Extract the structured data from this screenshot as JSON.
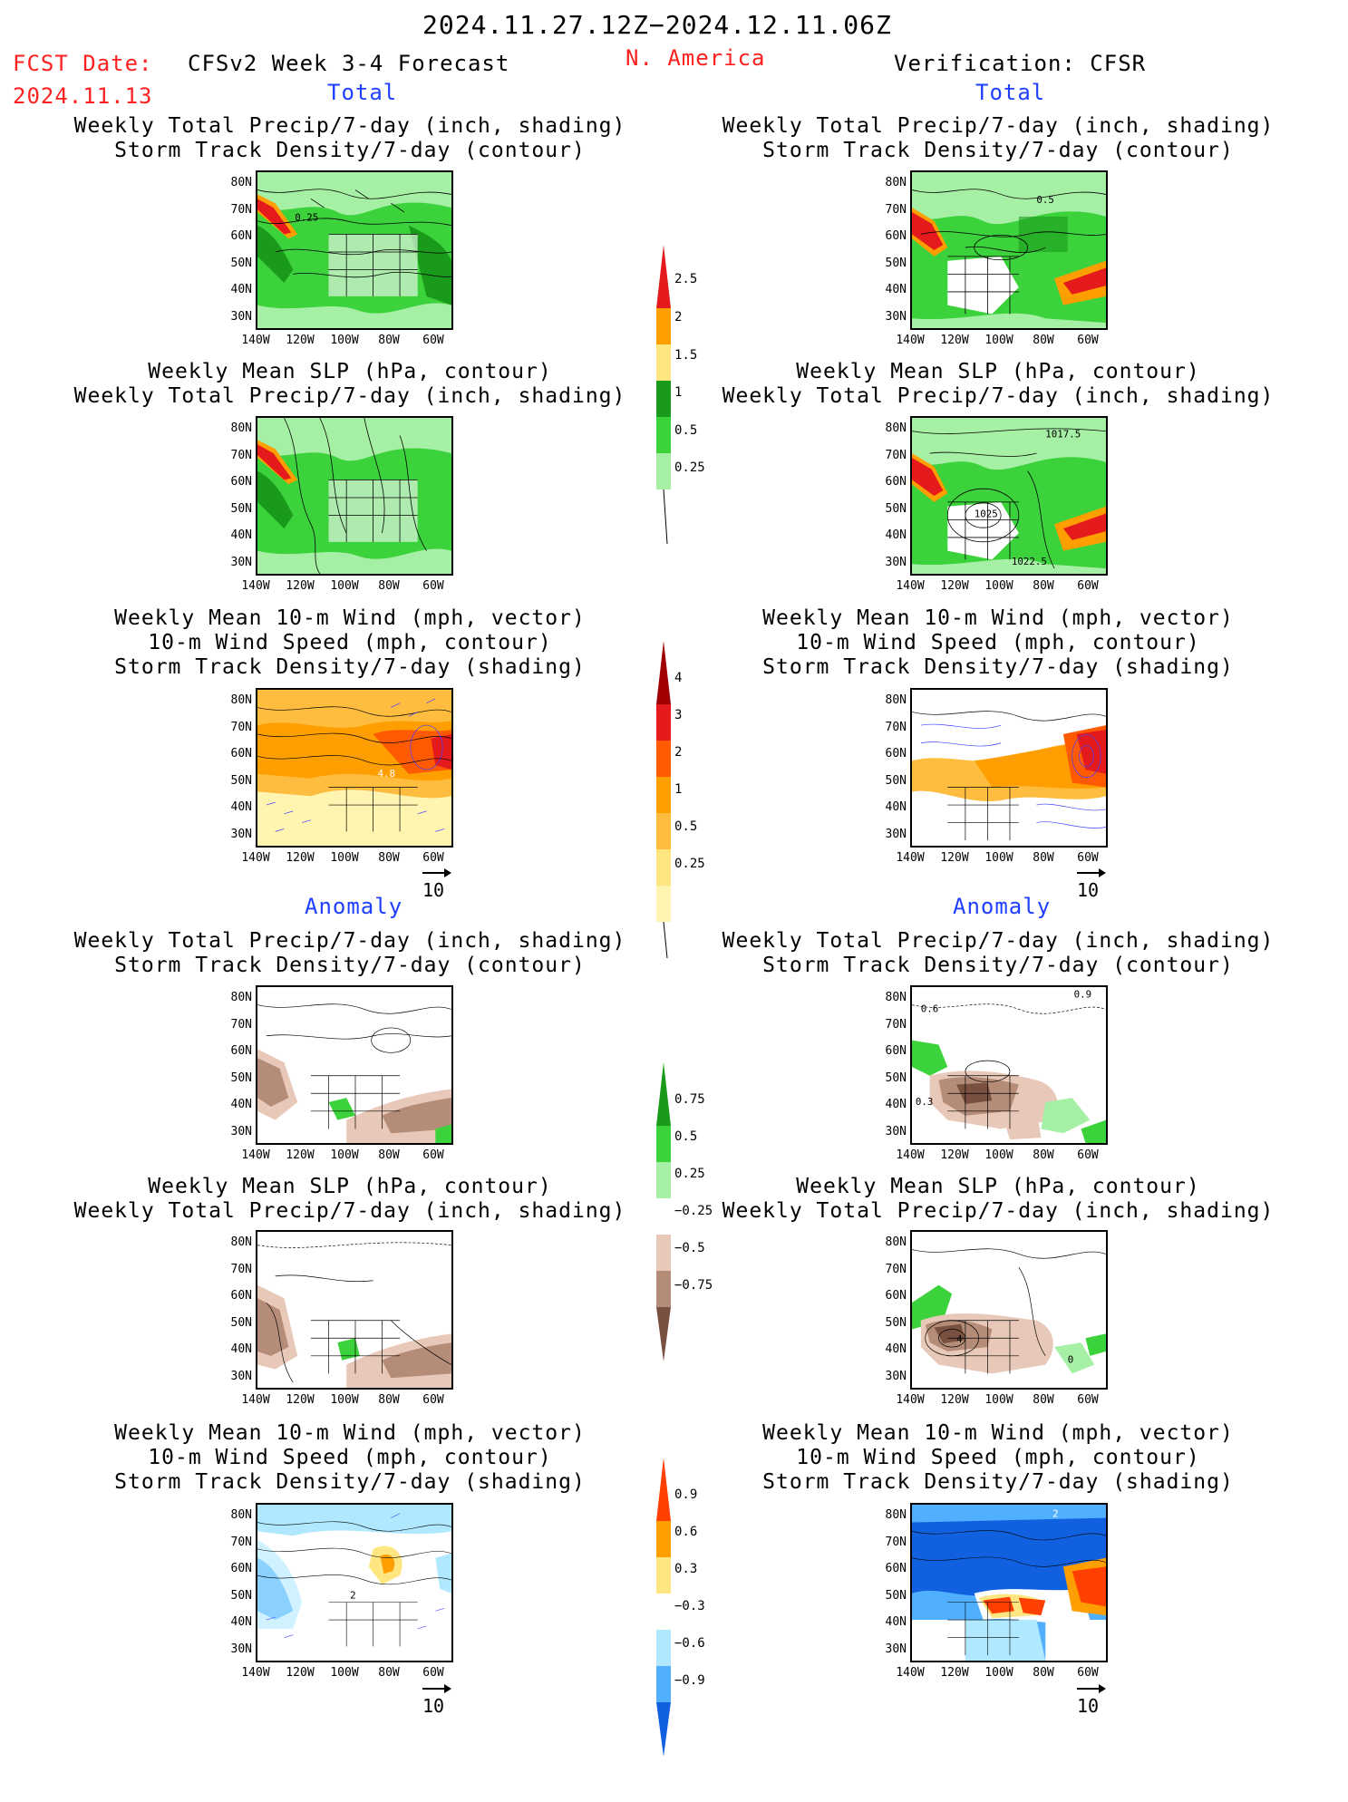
{
  "header": {
    "period": "2024.11.27.12Z−2024.12.11.06Z",
    "fcst_label": "FCST Date:",
    "fcst_date": "2024.11.13",
    "forecast_name": "CFSv2 Week 3-4 Forecast",
    "region": "N. America",
    "verification": "Verification: CFSR"
  },
  "sections": {
    "total": "Total",
    "anomaly": "Anomaly"
  },
  "panel_titles": {
    "precip_storm": [
      "Weekly Total Precip/7-day (inch, shading)",
      "Storm Track Density/7-day (contour)"
    ],
    "slp_precip": [
      "Weekly Mean SLP (hPa, contour)",
      "Weekly Total Precip/7-day (inch, shading)"
    ],
    "wind_storm": [
      "Weekly Mean 10-m Wind (mph, vector)",
      "10-m Wind Speed (mph, contour)",
      "Storm Track Density/7-day (shading)"
    ]
  },
  "axes": {
    "lat_labels": [
      "80N",
      "70N",
      "60N",
      "50N",
      "40N",
      "30N"
    ],
    "lon_labels": [
      "140W",
      "120W",
      "100W",
      "80W",
      "60W"
    ]
  },
  "contour_labels": {
    "l1": "0.25",
    "r1": "0.5",
    "r2a": "1017.5",
    "r2b": "1025",
    "r2c": "1022.5",
    "l3": "4.8",
    "r4a": "0.6",
    "r4b": "0.9",
    "r4c": "0.3",
    "r5a": "4",
    "r5b": "0",
    "l6": "2",
    "r6": "2"
  },
  "vector_ref": "10",
  "colorbars": [
    {
      "name": "total-precip",
      "labels": [
        "2.5",
        "2",
        "1.5",
        "1",
        "0.5",
        "0.25"
      ],
      "colors": [
        "#e41a1c",
        "#ff9e00",
        "#ffe680",
        "#1a9a1a",
        "#3cd23c",
        "#a6f0a6"
      ]
    },
    {
      "name": "total-storm",
      "labels": [
        "4",
        "3",
        "2",
        "1",
        "0.5",
        "0.25"
      ],
      "colors": [
        "#a00000",
        "#e41a1c",
        "#ff5a00",
        "#ff9e00",
        "#ffbd40",
        "#ffe680",
        "#fff5b0"
      ]
    },
    {
      "name": "anom-precip",
      "labels": [
        "0.75",
        "0.5",
        "0.25",
        "−0.25",
        "−0.5",
        "−0.75"
      ],
      "colors": [
        "#1a9a1a",
        "#3cd23c",
        "#a6f0a6",
        "#ffffff",
        "#e8c8b8",
        "#b48c78",
        "#7a5040"
      ]
    },
    {
      "name": "anom-storm",
      "labels": [
        "0.9",
        "0.6",
        "0.3",
        "−0.3",
        "−0.6",
        "−0.9"
      ],
      "colors": [
        "#ff4000",
        "#ff9e00",
        "#ffe680",
        "#ffffff",
        "#b0e8ff",
        "#50b0ff",
        "#1060e0"
      ]
    }
  ]
}
